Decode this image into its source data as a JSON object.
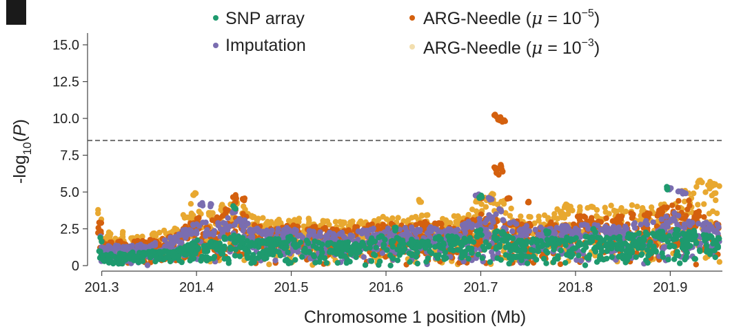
{
  "chart_data": {
    "type": "scatter",
    "title": "",
    "xlabel": "Chromosome 1 position (Mb)",
    "ylabel_parts": {
      "pre": "-log",
      "sub": "10",
      "post": "(P)"
    },
    "xlim": [
      201.285,
      201.955
    ],
    "ylim": [
      0,
      15.8
    ],
    "xticks": [
      201.3,
      201.4,
      201.5,
      201.6,
      201.7,
      201.8,
      201.9
    ],
    "xtick_labels": [
      "201.3",
      "201.4",
      "201.5",
      "201.6",
      "201.7",
      "201.8",
      "201.9"
    ],
    "yticks": [
      0,
      2.5,
      5.0,
      7.5,
      10.0,
      12.5,
      15.0
    ],
    "ytick_labels": [
      "0",
      "2.5",
      "5.0",
      "7.5",
      "10.0",
      "12.5",
      "15.0"
    ],
    "threshold": 8.5,
    "grid": false,
    "legend_position": "top",
    "series": [
      {
        "name": "ARG-Needle (μ = 10⁻³)",
        "legend_parts": {
          "pre": "ARG-Needle (",
          "mu": "μ",
          "eq": " = 10",
          "exp": "−3",
          "post": ")"
        },
        "color": "#E8A830",
        "legend_color": "#F2DEAE",
        "profile": [
          [
            201.3,
            2.3
          ],
          [
            201.33,
            2.3
          ],
          [
            201.36,
            2.4
          ],
          [
            201.38,
            2.8
          ],
          [
            201.39,
            4.5
          ],
          [
            201.4,
            3.8
          ],
          [
            201.42,
            3.6
          ],
          [
            201.44,
            4.6
          ],
          [
            201.46,
            3.4
          ],
          [
            201.48,
            3.1
          ],
          [
            201.5,
            3.2
          ],
          [
            201.52,
            3.2
          ],
          [
            201.54,
            3.0
          ],
          [
            201.56,
            3.0
          ],
          [
            201.58,
            3.2
          ],
          [
            201.6,
            3.4
          ],
          [
            201.62,
            3.2
          ],
          [
            201.64,
            3.7
          ],
          [
            201.66,
            3.2
          ],
          [
            201.68,
            3.6
          ],
          [
            201.7,
            4.6
          ],
          [
            201.72,
            4.9
          ],
          [
            201.74,
            3.4
          ],
          [
            201.76,
            3.3
          ],
          [
            201.78,
            3.9
          ],
          [
            201.8,
            4.1
          ],
          [
            201.84,
            4.1
          ],
          [
            201.86,
            4.2
          ],
          [
            201.88,
            4.1
          ],
          [
            201.9,
            4.6
          ],
          [
            201.92,
            5.5
          ],
          [
            201.94,
            5.8
          ],
          [
            201.95,
            5.5
          ]
        ],
        "peaks": [
          [
            201.398,
            5.0
          ],
          [
            201.428,
            4.2
          ],
          [
            201.636,
            4.5
          ],
          [
            201.697,
            4.5
          ],
          [
            201.712,
            4.9
          ],
          [
            201.79,
            4.2
          ],
          [
            201.93,
            5.9
          ],
          [
            201.945,
            5.6
          ]
        ]
      },
      {
        "name": "ARG-Needle (μ = 10⁻⁵)",
        "legend_parts": {
          "pre": "ARG-Needle (",
          "mu": "μ",
          "eq": " = 10",
          "exp": "−5",
          "post": ")"
        },
        "color": "#D4600E",
        "legend_color": "#D4600E",
        "profile": [
          [
            201.3,
            1.7
          ],
          [
            201.33,
            1.7
          ],
          [
            201.36,
            1.8
          ],
          [
            201.38,
            2.2
          ],
          [
            201.4,
            3.4
          ],
          [
            201.42,
            3.2
          ],
          [
            201.44,
            4.6
          ],
          [
            201.46,
            2.8
          ],
          [
            201.48,
            2.6
          ],
          [
            201.5,
            2.8
          ],
          [
            201.52,
            2.7
          ],
          [
            201.54,
            2.6
          ],
          [
            201.56,
            2.6
          ],
          [
            201.58,
            2.8
          ],
          [
            201.6,
            2.9
          ],
          [
            201.62,
            2.8
          ],
          [
            201.64,
            3.0
          ],
          [
            201.66,
            2.9
          ],
          [
            201.68,
            3.0
          ],
          [
            201.7,
            3.6
          ],
          [
            201.72,
            3.3
          ],
          [
            201.74,
            3.0
          ],
          [
            201.76,
            2.9
          ],
          [
            201.78,
            3.1
          ],
          [
            201.8,
            3.4
          ],
          [
            201.84,
            3.4
          ],
          [
            201.86,
            3.6
          ],
          [
            201.88,
            3.6
          ],
          [
            201.9,
            4.3
          ],
          [
            201.92,
            4.6
          ],
          [
            201.94,
            3.4
          ],
          [
            201.95,
            3.0
          ]
        ],
        "peaks": [
          [
            201.716,
            10.3
          ],
          [
            201.72,
            10.1
          ],
          [
            201.724,
            10.0
          ],
          [
            201.716,
            6.8
          ],
          [
            201.72,
            6.9
          ],
          [
            201.723,
            6.6
          ],
          [
            201.718,
            6.4
          ],
          [
            201.7,
            4.7
          ],
          [
            201.73,
            4.6
          ],
          [
            201.75,
            4.5
          ],
          [
            201.44,
            4.8
          ],
          [
            201.45,
            4.6
          ]
        ]
      },
      {
        "name": "Imputation",
        "legend_parts": {
          "pre": "Imputation"
        },
        "color": "#7A6DB0",
        "legend_color": "#7A6DB0",
        "profile": [
          [
            201.3,
            1.4
          ],
          [
            201.33,
            1.4
          ],
          [
            201.36,
            1.6
          ],
          [
            201.38,
            2.1
          ],
          [
            201.4,
            3.2
          ],
          [
            201.42,
            3.0
          ],
          [
            201.44,
            3.8
          ],
          [
            201.46,
            2.6
          ],
          [
            201.48,
            2.5
          ],
          [
            201.5,
            2.6
          ],
          [
            201.52,
            2.4
          ],
          [
            201.54,
            2.3
          ],
          [
            201.56,
            2.3
          ],
          [
            201.58,
            2.5
          ],
          [
            201.6,
            2.6
          ],
          [
            201.62,
            2.6
          ],
          [
            201.64,
            2.6
          ],
          [
            201.66,
            2.7
          ],
          [
            201.68,
            2.8
          ],
          [
            201.7,
            3.4
          ],
          [
            201.72,
            3.6
          ],
          [
            201.74,
            2.8
          ],
          [
            201.76,
            2.6
          ],
          [
            201.78,
            2.7
          ],
          [
            201.8,
            2.8
          ],
          [
            201.84,
            2.8
          ],
          [
            201.86,
            2.9
          ],
          [
            201.88,
            3.1
          ],
          [
            201.9,
            3.6
          ],
          [
            201.92,
            3.5
          ],
          [
            201.94,
            3.0
          ],
          [
            201.95,
            2.8
          ]
        ],
        "peaks": [
          [
            201.405,
            4.3
          ],
          [
            201.415,
            4.2
          ],
          [
            201.696,
            4.9
          ],
          [
            201.71,
            4.7
          ],
          [
            201.9,
            5.3
          ],
          [
            201.91,
            5.2
          ],
          [
            201.915,
            5.0
          ],
          [
            201.72,
            3.9
          ]
        ]
      },
      {
        "name": "SNP array",
        "legend_parts": {
          "pre": "SNP array"
        },
        "color": "#1E9A6E",
        "legend_color": "#1E9A6E",
        "profile": [
          [
            201.3,
            0.8
          ],
          [
            201.33,
            0.9
          ],
          [
            201.36,
            1.0
          ],
          [
            201.38,
            1.1
          ],
          [
            201.4,
            1.8
          ],
          [
            201.42,
            1.6
          ],
          [
            201.44,
            2.4
          ],
          [
            201.46,
            1.8
          ],
          [
            201.48,
            1.8
          ],
          [
            201.5,
            2.0
          ],
          [
            201.52,
            1.7
          ],
          [
            201.54,
            1.6
          ],
          [
            201.56,
            1.6
          ],
          [
            201.58,
            1.8
          ],
          [
            201.6,
            2.1
          ],
          [
            201.62,
            1.8
          ],
          [
            201.64,
            1.9
          ],
          [
            201.66,
            2.0
          ],
          [
            201.68,
            2.0
          ],
          [
            201.7,
            2.6
          ],
          [
            201.72,
            2.4
          ],
          [
            201.74,
            1.8
          ],
          [
            201.76,
            1.8
          ],
          [
            201.78,
            1.9
          ],
          [
            201.8,
            2.0
          ],
          [
            201.84,
            2.0
          ],
          [
            201.86,
            2.2
          ],
          [
            201.88,
            2.3
          ],
          [
            201.9,
            2.6
          ],
          [
            201.92,
            2.3
          ],
          [
            201.94,
            2.1
          ],
          [
            201.95,
            2.0
          ]
        ],
        "peaks": [
          [
            201.7,
            4.8
          ],
          [
            201.897,
            5.4
          ],
          [
            201.44,
            4.1
          ],
          [
            201.61,
            2.6
          ],
          [
            201.77,
            2.4
          ],
          [
            201.82,
            2.5
          ],
          [
            201.925,
            2.4
          ]
        ]
      }
    ]
  }
}
